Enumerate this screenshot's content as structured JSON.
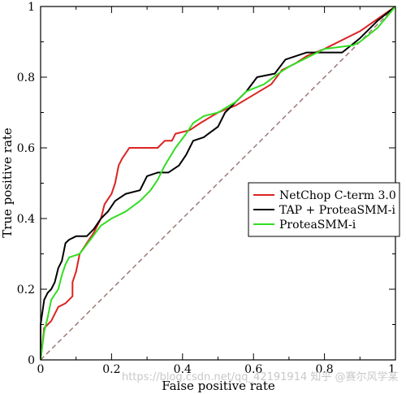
{
  "chart_data": {
    "type": "line",
    "title": "",
    "xlabel": "False positive rate",
    "ylabel": "True positive rate",
    "xlim": [
      0,
      1
    ],
    "ylim": [
      0,
      1
    ],
    "x_ticks": [
      0,
      0.2,
      0.4,
      0.6,
      0.8,
      1
    ],
    "y_ticks": [
      0,
      0.2,
      0.4,
      0.6,
      0.8,
      1
    ],
    "x_tick_labels": [
      "0",
      "0.2",
      "0.4",
      "0.6",
      "0.8",
      "1"
    ],
    "y_tick_labels": [
      "0",
      "0.2",
      "0.4",
      "0.6",
      "0.8",
      "1"
    ],
    "grid": false,
    "legend_position": "center-right",
    "series": [
      {
        "name": "NetChop C-term 3.0",
        "color": "#dd2222",
        "points": [
          [
            0,
            0
          ],
          [
            0.01,
            0.09
          ],
          [
            0.03,
            0.11
          ],
          [
            0.05,
            0.15
          ],
          [
            0.07,
            0.16
          ],
          [
            0.09,
            0.18
          ],
          [
            0.09,
            0.22
          ],
          [
            0.1,
            0.25
          ],
          [
            0.11,
            0.3
          ],
          [
            0.13,
            0.33
          ],
          [
            0.15,
            0.36
          ],
          [
            0.17,
            0.4
          ],
          [
            0.18,
            0.44
          ],
          [
            0.2,
            0.47
          ],
          [
            0.21,
            0.5
          ],
          [
            0.22,
            0.55
          ],
          [
            0.23,
            0.57
          ],
          [
            0.25,
            0.6
          ],
          [
            0.33,
            0.6
          ],
          [
            0.35,
            0.62
          ],
          [
            0.37,
            0.62
          ],
          [
            0.38,
            0.64
          ],
          [
            0.42,
            0.65
          ],
          [
            0.45,
            0.67
          ],
          [
            0.5,
            0.7
          ],
          [
            0.55,
            0.72
          ],
          [
            0.6,
            0.75
          ],
          [
            0.65,
            0.78
          ],
          [
            0.68,
            0.82
          ],
          [
            0.72,
            0.84
          ],
          [
            0.75,
            0.86
          ],
          [
            0.8,
            0.88
          ],
          [
            0.9,
            0.93
          ],
          [
            1,
            1
          ]
        ]
      },
      {
        "name": "TAP + ProteaSMM-i",
        "color": "#000000",
        "points": [
          [
            0,
            0
          ],
          [
            0,
            0.1
          ],
          [
            0.01,
            0.17
          ],
          [
            0.02,
            0.19
          ],
          [
            0.03,
            0.2
          ],
          [
            0.04,
            0.22
          ],
          [
            0.05,
            0.26
          ],
          [
            0.06,
            0.28
          ],
          [
            0.07,
            0.33
          ],
          [
            0.08,
            0.34
          ],
          [
            0.1,
            0.35
          ],
          [
            0.13,
            0.35
          ],
          [
            0.15,
            0.37
          ],
          [
            0.17,
            0.4
          ],
          [
            0.19,
            0.42
          ],
          [
            0.21,
            0.45
          ],
          [
            0.24,
            0.47
          ],
          [
            0.28,
            0.48
          ],
          [
            0.3,
            0.52
          ],
          [
            0.33,
            0.53
          ],
          [
            0.36,
            0.53
          ],
          [
            0.39,
            0.55
          ],
          [
            0.41,
            0.58
          ],
          [
            0.43,
            0.62
          ],
          [
            0.46,
            0.63
          ],
          [
            0.5,
            0.66
          ],
          [
            0.52,
            0.7
          ],
          [
            0.55,
            0.73
          ],
          [
            0.58,
            0.76
          ],
          [
            0.61,
            0.8
          ],
          [
            0.66,
            0.81
          ],
          [
            0.69,
            0.85
          ],
          [
            0.72,
            0.86
          ],
          [
            0.75,
            0.87
          ],
          [
            0.85,
            0.87
          ],
          [
            0.9,
            0.91
          ],
          [
            0.95,
            0.96
          ],
          [
            1,
            1
          ]
        ]
      },
      {
        "name": "ProteaSMM-i",
        "color": "#33dd22",
        "points": [
          [
            0,
            0
          ],
          [
            0.01,
            0.08
          ],
          [
            0.02,
            0.12
          ],
          [
            0.03,
            0.17
          ],
          [
            0.05,
            0.2
          ],
          [
            0.06,
            0.24
          ],
          [
            0.07,
            0.27
          ],
          [
            0.08,
            0.29
          ],
          [
            0.11,
            0.3
          ],
          [
            0.14,
            0.34
          ],
          [
            0.17,
            0.38
          ],
          [
            0.2,
            0.4
          ],
          [
            0.24,
            0.42
          ],
          [
            0.28,
            0.45
          ],
          [
            0.31,
            0.48
          ],
          [
            0.33,
            0.51
          ],
          [
            0.35,
            0.55
          ],
          [
            0.38,
            0.6
          ],
          [
            0.41,
            0.64
          ],
          [
            0.43,
            0.67
          ],
          [
            0.46,
            0.69
          ],
          [
            0.5,
            0.7
          ],
          [
            0.55,
            0.73
          ],
          [
            0.58,
            0.76
          ],
          [
            0.63,
            0.78
          ],
          [
            0.67,
            0.81
          ],
          [
            0.7,
            0.83
          ],
          [
            0.74,
            0.85
          ],
          [
            0.8,
            0.88
          ],
          [
            0.88,
            0.89
          ],
          [
            0.9,
            0.9
          ],
          [
            0.95,
            0.94
          ],
          [
            1,
            1
          ]
        ]
      },
      {
        "name": "",
        "color": "#a07878",
        "style": "dashed",
        "points": [
          [
            0,
            0
          ],
          [
            1,
            1
          ]
        ]
      }
    ]
  },
  "watermark": "https://blog.csdn.net/qq_42191914 知乎 @赛尔风学某"
}
